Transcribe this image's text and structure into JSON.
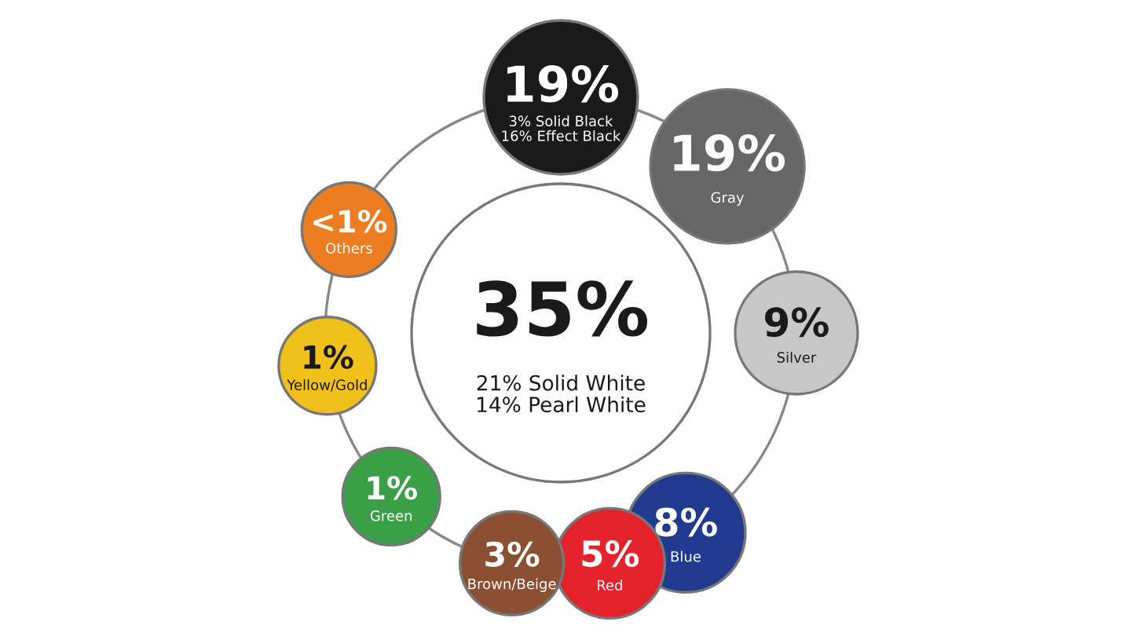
{
  "chart_data": {
    "type": "other",
    "categories": [
      "21% Solid White\n14% Pearl White",
      "3% Solid Black\n16% Effect Black",
      "Gray",
      "Silver",
      "Blue",
      "Red",
      "Brown/Beige",
      "Green",
      "Yellow/Gold",
      "Others"
    ],
    "values": [
      35,
      19,
      19,
      9,
      8,
      5,
      3,
      1,
      1,
      null
    ],
    "value_labels": [
      "35%",
      "19%",
      "19%",
      "9%",
      "8%",
      "5%",
      "3%",
      "1%",
      "1%",
      "<1%"
    ],
    "colors": [
      "#ffffff",
      "#1a1a1a",
      "#666666",
      "#c8c8c8",
      "#1f3a8f",
      "#e3222b",
      "#8b4f32",
      "#3aa047",
      "#f2c01a",
      "#ee7d22"
    ]
  }
}
